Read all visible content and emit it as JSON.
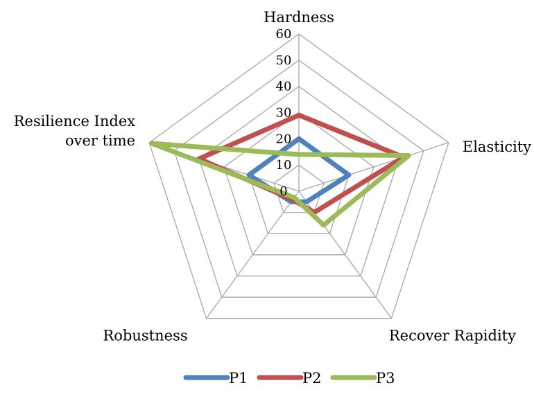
{
  "chart_data": {
    "type": "radar",
    "title": "",
    "axes": [
      "Hardness",
      "Elasticity",
      "Recover Rapidity",
      "Robustness",
      "Resilience Index over time"
    ],
    "axis_label_lines": [
      [
        "Hardness"
      ],
      [
        "Elasticity"
      ],
      [
        "Recover Rapidity"
      ],
      [
        "Robustness"
      ],
      [
        "Resilience Index",
        "over time"
      ]
    ],
    "rlim": [
      0,
      60
    ],
    "ticks": [
      "0",
      "10",
      "20",
      "30",
      "40",
      "50",
      "60"
    ],
    "grid": true,
    "legend_position": "bottom",
    "series": [
      {
        "name": "P1",
        "color": "#4f81bd",
        "values": [
          20,
          20,
          5,
          5,
          20
        ]
      },
      {
        "name": "P2",
        "color": "#c0504d",
        "values": [
          29,
          42,
          10,
          4,
          40
        ]
      },
      {
        "name": "P3",
        "color": "#9bbb59",
        "values": [
          14,
          44,
          16,
          3,
          59
        ]
      }
    ]
  }
}
